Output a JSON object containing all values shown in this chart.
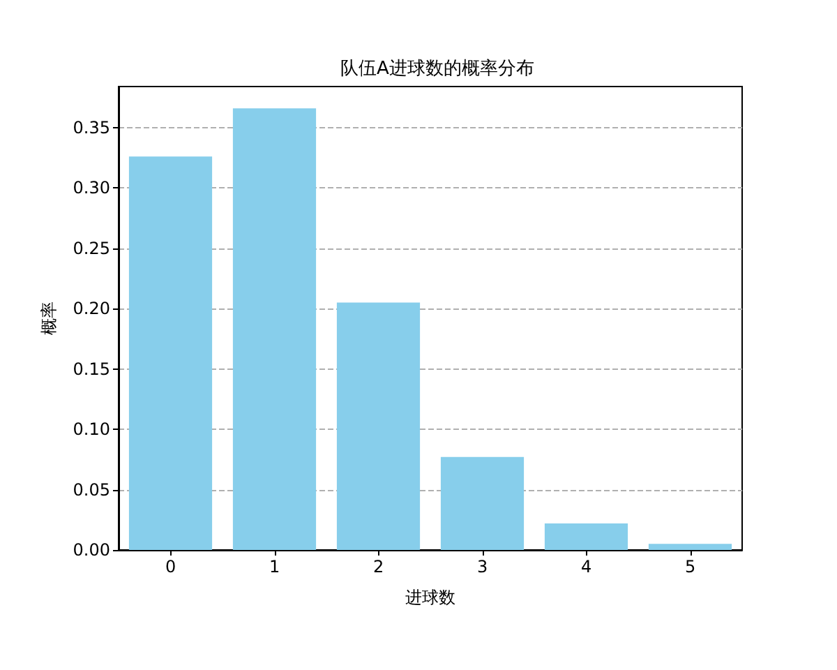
{
  "chart_data": {
    "type": "bar",
    "title": "队伍A进球数的概率分布",
    "xlabel": "进球数",
    "ylabel": "概率",
    "categories": [
      "0",
      "1",
      "2",
      "3",
      "4",
      "5"
    ],
    "values": [
      0.326,
      0.366,
      0.205,
      0.077,
      0.022,
      0.005
    ],
    "color": "#87ceeb",
    "ylim": [
      0,
      0.384
    ],
    "yticks": [
      {
        "value": 0,
        "label": "0.00"
      },
      {
        "value": 0.05,
        "label": "0.05"
      },
      {
        "value": 0.1,
        "label": "0.10"
      },
      {
        "value": 0.15,
        "label": "0.15"
      },
      {
        "value": 0.2,
        "label": "0.20"
      },
      {
        "value": 0.25,
        "label": "0.25"
      },
      {
        "value": 0.3,
        "label": "0.30"
      },
      {
        "value": 0.35,
        "label": "0.35"
      }
    ],
    "grid": "y"
  }
}
